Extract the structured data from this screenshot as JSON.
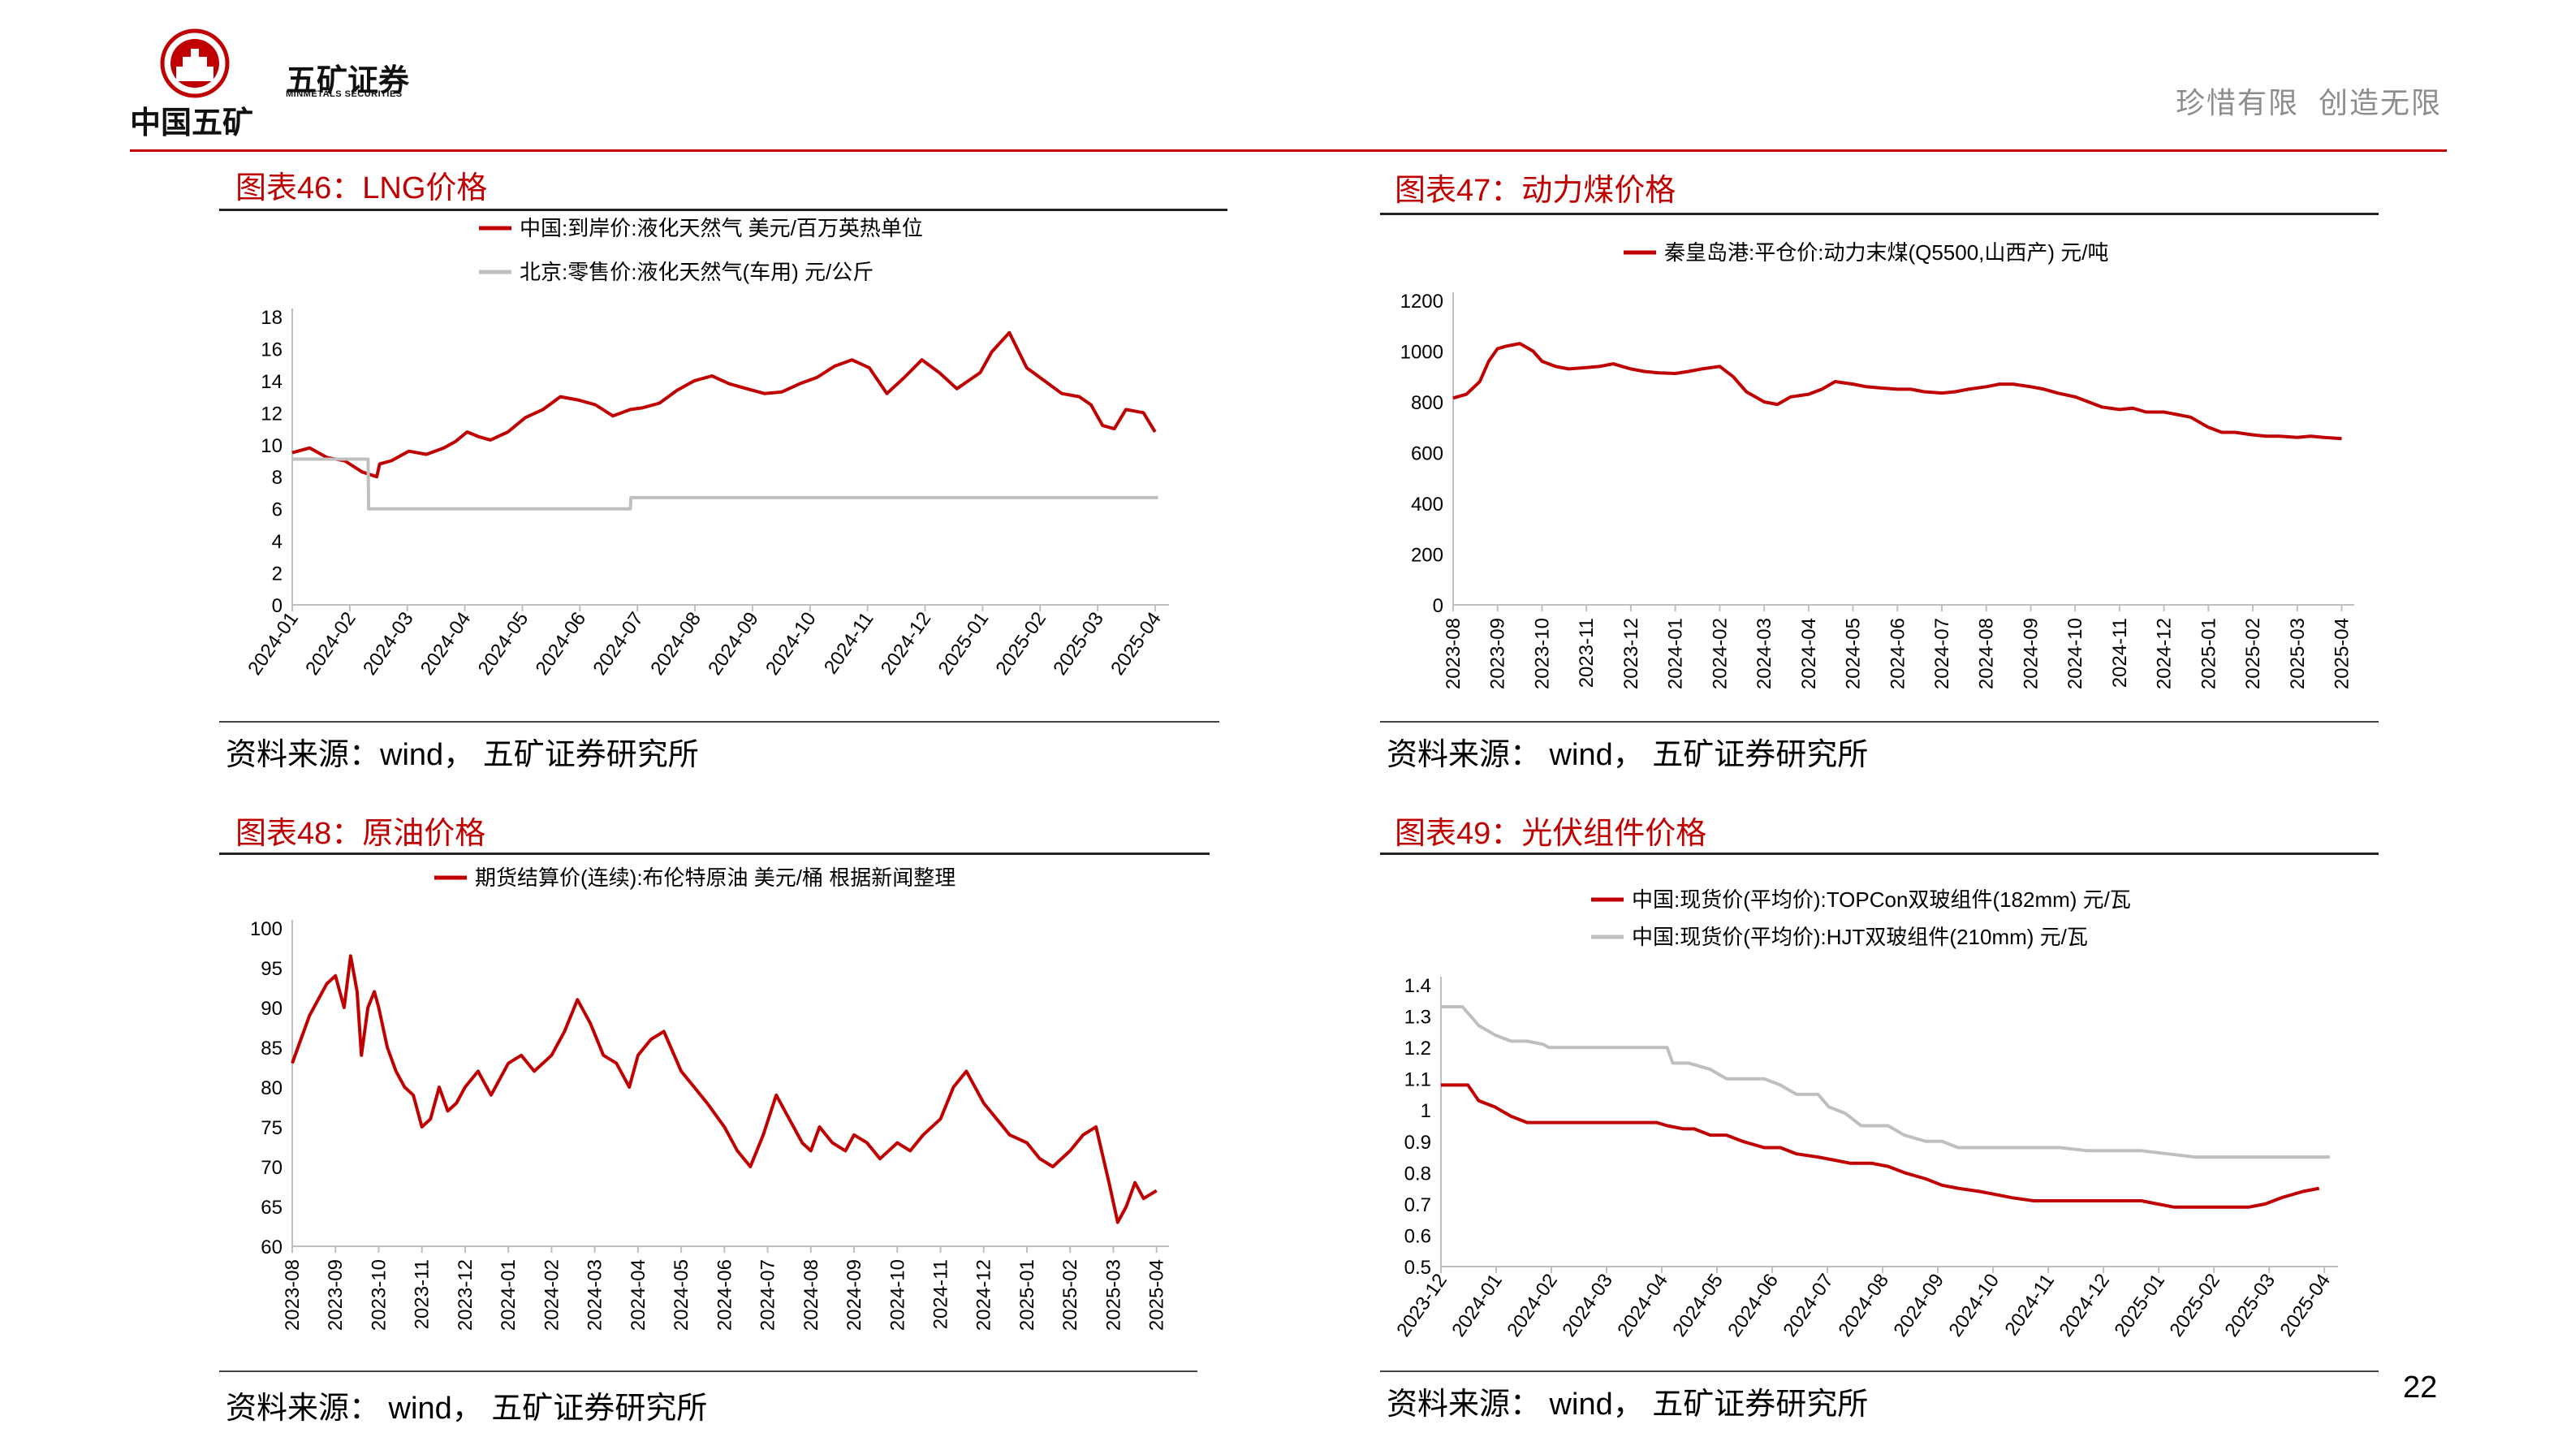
{
  "header": {
    "group_name": "中国五矿",
    "company_name": "五矿证券",
    "company_name_en": "MINMETALS SECURITIES",
    "slogan": "珍惜有限  创造无限"
  },
  "page_number": "22",
  "colors": {
    "accent": "#c00000",
    "series_gray": "#bfbfbf"
  },
  "panels": [
    {
      "title": "图表46：LNG价格",
      "source": "资料来源：wind， 五矿证券研究所"
    },
    {
      "title": "图表47：动力煤价格",
      "source": "资料来源： wind， 五矿证券研究所"
    },
    {
      "title": "图表48：原油价格",
      "source": "资料来源： wind， 五矿证券研究所"
    },
    {
      "title": "图表49：光伏组件价格",
      "source": "资料来源： wind， 五矿证券研究所"
    }
  ],
  "chart_data": [
    {
      "type": "line",
      "legend_position": "top",
      "x_ticks": [
        "2024-01",
        "2024-02",
        "2024-03",
        "2024-04",
        "2024-05",
        "2024-06",
        "2024-07",
        "2024-08",
        "2024-09",
        "2024-10",
        "2024-11",
        "2024-12",
        "2025-01",
        "2025-02",
        "2025-03",
        "2025-04"
      ],
      "yticks": [
        0,
        2,
        4,
        6,
        8,
        10,
        12,
        14,
        16,
        18
      ],
      "ylim": [
        0,
        18
      ],
      "xlim": [
        0,
        14.9
      ],
      "series": [
        {
          "name": "中国:到岸价:液化天然气 美元/百万英热单位",
          "color": "#c00000",
          "x": [
            0,
            0.3,
            0.6,
            0.9,
            1.2,
            1.45,
            1.5,
            1.7,
            2.0,
            2.3,
            2.6,
            2.8,
            3.0,
            3.2,
            3.4,
            3.7,
            4.0,
            4.3,
            4.6,
            4.9,
            5.2,
            5.5,
            5.8,
            6.0,
            6.3,
            6.6,
            6.9,
            7.2,
            7.5,
            7.8,
            8.1,
            8.4,
            8.7,
            9.0,
            9.3,
            9.6,
            9.9,
            10.2,
            10.5,
            10.8,
            11.1,
            11.4,
            11.6,
            11.8,
            12.0,
            12.3,
            12.6,
            12.9,
            13.2,
            13.5,
            13.7,
            13.9,
            14.1,
            14.3,
            14.6,
            14.8
          ],
          "y": [
            9.5,
            9.8,
            9.2,
            9.0,
            8.3,
            8.0,
            8.8,
            9.0,
            9.6,
            9.4,
            9.8,
            10.2,
            10.8,
            10.5,
            10.3,
            10.8,
            11.7,
            12.2,
            13.0,
            12.8,
            12.5,
            11.8,
            12.2,
            12.3,
            12.6,
            13.4,
            14.0,
            14.3,
            13.8,
            13.5,
            13.2,
            13.3,
            13.8,
            14.2,
            14.9,
            15.3,
            14.8,
            13.2,
            14.2,
            15.3,
            14.5,
            13.5,
            14.0,
            14.5,
            15.8,
            17.0,
            14.8,
            14.0,
            13.2,
            13.0,
            12.5,
            11.2,
            11.0,
            12.2,
            12.0,
            10.8
          ]
        },
        {
          "name": "北京:零售价:液化天然气(车用) 元/公斤",
          "color": "#bfbfbf",
          "x": [
            0,
            1.3,
            1.31,
            5.8,
            5.81,
            14.85
          ],
          "y": [
            9.1,
            9.1,
            6.0,
            6.0,
            6.7,
            6.7
          ]
        }
      ]
    },
    {
      "type": "line",
      "legend_position": "top",
      "x_ticks": [
        "2023-08",
        "2023-09",
        "2023-10",
        "2023-11",
        "2023-12",
        "2024-01",
        "2024-02",
        "2024-03",
        "2024-04",
        "2024-05",
        "2024-06",
        "2024-07",
        "2024-08",
        "2024-09",
        "2024-10",
        "2024-11",
        "2024-12",
        "2025-01",
        "2025-02",
        "2025-03",
        "2025-04"
      ],
      "yticks": [
        0,
        200,
        400,
        600,
        800,
        1000,
        1200
      ],
      "ylim": [
        0,
        1200
      ],
      "xlim": [
        0,
        20.1
      ],
      "series": [
        {
          "name": "秦皇岛港:平仓价:动力末煤(Q5500,山西产) 元/吨",
          "color": "#c00000",
          "x": [
            0,
            0.3,
            0.6,
            0.8,
            1.0,
            1.2,
            1.5,
            1.8,
            2.0,
            2.3,
            2.6,
            3.0,
            3.3,
            3.6,
            4.0,
            4.3,
            4.6,
            5.0,
            5.3,
            5.6,
            6.0,
            6.3,
            6.6,
            7.0,
            7.3,
            7.6,
            8.0,
            8.3,
            8.6,
            9.0,
            9.3,
            9.6,
            10.0,
            10.3,
            10.6,
            11.0,
            11.3,
            11.6,
            12.0,
            12.3,
            12.6,
            13.0,
            13.3,
            13.6,
            14.0,
            14.3,
            14.6,
            15.0,
            15.3,
            15.6,
            16.0,
            16.3,
            16.6,
            17.0,
            17.3,
            17.6,
            18.0,
            18.3,
            18.6,
            19.0,
            19.3,
            19.6,
            20.0
          ],
          "y": [
            815,
            830,
            880,
            960,
            1010,
            1020,
            1030,
            1000,
            960,
            940,
            930,
            935,
            940,
            950,
            930,
            920,
            915,
            912,
            920,
            930,
            940,
            900,
            840,
            800,
            790,
            820,
            830,
            850,
            880,
            870,
            860,
            855,
            850,
            850,
            840,
            835,
            840,
            850,
            860,
            870,
            870,
            860,
            850,
            835,
            820,
            800,
            780,
            770,
            775,
            760,
            760,
            750,
            740,
            700,
            680,
            680,
            670,
            665,
            665,
            660,
            665,
            660,
            655
          ]
        }
      ]
    },
    {
      "type": "line",
      "legend_position": "top",
      "x_ticks": [
        "2023-08",
        "2023-09",
        "2023-10",
        "2023-11",
        "2023-12",
        "2024-01",
        "2024-02",
        "2024-03",
        "2024-04",
        "2024-05",
        "2024-06",
        "2024-07",
        "2024-08",
        "2024-09",
        "2024-10",
        "2024-11",
        "2024-12",
        "2025-01",
        "2025-02",
        "2025-03",
        "2025-04"
      ],
      "yticks": [
        60,
        65,
        70,
        75,
        80,
        85,
        90,
        95,
        100
      ],
      "ylim": [
        60,
        100
      ],
      "xlim": [
        0,
        20.1
      ],
      "series": [
        {
          "name": "期货结算价(连续):布伦特原油 美元/桶 根据新闻整理",
          "color": "#c00000",
          "x": [
            0,
            0.2,
            0.4,
            0.6,
            0.8,
            1.0,
            1.2,
            1.35,
            1.5,
            1.6,
            1.75,
            1.9,
            2.0,
            2.2,
            2.4,
            2.6,
            2.8,
            3.0,
            3.2,
            3.4,
            3.6,
            3.8,
            4.0,
            4.3,
            4.6,
            5.0,
            5.3,
            5.6,
            6.0,
            6.3,
            6.6,
            6.9,
            7.2,
            7.5,
            7.8,
            8.0,
            8.3,
            8.6,
            9.0,
            9.3,
            9.6,
            10.0,
            10.3,
            10.6,
            10.9,
            11.2,
            11.5,
            11.8,
            12.0,
            12.2,
            12.5,
            12.8,
            13.0,
            13.3,
            13.6,
            14.0,
            14.3,
            14.6,
            15.0,
            15.3,
            15.6,
            16.0,
            16.3,
            16.6,
            17.0,
            17.3,
            17.6,
            18.0,
            18.3,
            18.6,
            18.9,
            19.1,
            19.3,
            19.5,
            19.7,
            20.0
          ],
          "y": [
            83,
            86,
            89,
            91,
            93,
            94,
            90,
            96.5,
            92,
            84,
            90,
            92,
            90,
            85,
            82,
            80,
            79,
            75,
            76,
            80,
            77,
            78,
            80,
            82,
            79,
            83,
            84,
            82,
            84,
            87,
            91,
            88,
            84,
            83,
            80,
            84,
            86,
            87,
            82,
            80,
            78,
            75,
            72,
            70,
            74,
            79,
            76,
            73,
            72,
            75,
            73,
            72,
            74,
            73,
            71,
            73,
            72,
            74,
            76,
            80,
            82,
            78,
            76,
            74,
            73,
            71,
            70,
            72,
            74,
            75,
            68,
            63,
            65,
            68,
            66,
            67
          ]
        }
      ]
    },
    {
      "type": "line",
      "legend_position": "top",
      "x_ticks": [
        "2023-12",
        "2024-01",
        "2024-02",
        "2024-03",
        "2024-04",
        "2024-05",
        "2024-06",
        "2024-07",
        "2024-08",
        "2024-09",
        "2024-10",
        "2024-11",
        "2024-12",
        "2025-01",
        "2025-02",
        "2025-03",
        "2025-04"
      ],
      "yticks": [
        0.5,
        0.6,
        0.7,
        0.8,
        0.9,
        1,
        1.1,
        1.2,
        1.3,
        1.4
      ],
      "ylim": [
        0.5,
        1.4
      ],
      "xlim": [
        0,
        16.5
      ],
      "series": [
        {
          "name": "中国:现货价(平均价):TOPCon双玻组件(182mm) 元/瓦",
          "color": "#c00000",
          "x": [
            0,
            0.5,
            0.7,
            1.0,
            1.3,
            1.6,
            2.0,
            2.5,
            3.0,
            3.5,
            4.0,
            4.2,
            4.5,
            4.7,
            5.0,
            5.3,
            5.6,
            6.0,
            6.3,
            6.6,
            7.0,
            7.3,
            7.6,
            8.0,
            8.3,
            8.6,
            9.0,
            9.3,
            9.6,
            10.0,
            10.3,
            10.6,
            11.0,
            11.5,
            12.0,
            12.5,
            13.0,
            13.3,
            13.6,
            14.0,
            14.5,
            15.0,
            15.3,
            15.6,
            16.0,
            16.3
          ],
          "y": [
            1.08,
            1.08,
            1.03,
            1.01,
            0.98,
            0.96,
            0.96,
            0.96,
            0.96,
            0.96,
            0.96,
            0.95,
            0.94,
            0.94,
            0.92,
            0.92,
            0.9,
            0.88,
            0.88,
            0.86,
            0.85,
            0.84,
            0.83,
            0.83,
            0.82,
            0.8,
            0.78,
            0.76,
            0.75,
            0.74,
            0.73,
            0.72,
            0.71,
            0.71,
            0.71,
            0.71,
            0.71,
            0.7,
            0.69,
            0.69,
            0.69,
            0.69,
            0.7,
            0.72,
            0.74,
            0.75
          ]
        },
        {
          "name": "中国:现货价(平均价):HJT双玻组件(210mm) 元/瓦",
          "color": "#bfbfbf",
          "x": [
            0,
            0.4,
            0.7,
            1.0,
            1.3,
            1.6,
            1.9,
            2.0,
            2.5,
            3.0,
            3.5,
            4.0,
            4.2,
            4.3,
            4.6,
            5.0,
            5.3,
            5.6,
            6.0,
            6.3,
            6.6,
            7.0,
            7.2,
            7.5,
            7.8,
            8.0,
            8.3,
            8.6,
            9.0,
            9.3,
            9.6,
            10.0,
            10.5,
            11.0,
            11.5,
            12.0,
            12.5,
            13.0,
            13.5,
            14.0,
            14.5,
            15.0,
            15.5,
            16.0,
            16.5
          ],
          "y": [
            1.33,
            1.33,
            1.27,
            1.24,
            1.22,
            1.22,
            1.21,
            1.2,
            1.2,
            1.2,
            1.2,
            1.2,
            1.2,
            1.15,
            1.15,
            1.13,
            1.1,
            1.1,
            1.1,
            1.08,
            1.05,
            1.05,
            1.01,
            0.99,
            0.95,
            0.95,
            0.95,
            0.92,
            0.9,
            0.9,
            0.88,
            0.88,
            0.88,
            0.88,
            0.88,
            0.87,
            0.87,
            0.87,
            0.86,
            0.85,
            0.85,
            0.85,
            0.85,
            0.85,
            0.85
          ]
        }
      ]
    }
  ]
}
